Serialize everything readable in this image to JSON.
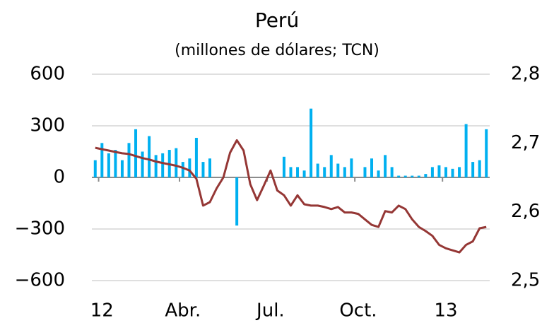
{
  "chart_data": {
    "type": "combo",
    "title": "Perú",
    "subtitle": "(millones de dólares; TCN)",
    "categories": [
      null,
      "12",
      null,
      null,
      null,
      null,
      null,
      null,
      null,
      null,
      null,
      null,
      null,
      "Abr.",
      null,
      null,
      null,
      null,
      null,
      null,
      null,
      null,
      null,
      null,
      null,
      null,
      "Jul.",
      null,
      null,
      null,
      null,
      null,
      null,
      null,
      null,
      null,
      null,
      null,
      null,
      "Oct.",
      null,
      null,
      null,
      null,
      null,
      null,
      null,
      null,
      null,
      null,
      null,
      null,
      "13",
      null,
      null,
      null,
      null,
      null,
      null
    ],
    "series": [
      {
        "type": "bar",
        "axis": "y",
        "color": "#00b0f0",
        "values": [
          100,
          200,
          140,
          160,
          100,
          200,
          280,
          150,
          240,
          130,
          140,
          160,
          170,
          90,
          110,
          230,
          90,
          110,
          0,
          0,
          0,
          -280,
          0,
          0,
          0,
          0,
          0,
          0,
          120,
          60,
          60,
          40,
          400,
          80,
          60,
          130,
          80,
          60,
          110,
          0,
          60,
          110,
          40,
          130,
          60,
          10,
          10,
          10,
          10,
          20,
          60,
          70,
          60,
          50,
          60,
          310,
          90,
          100,
          280
        ]
      },
      {
        "type": "line",
        "axis": "y2",
        "color": "#953735",
        "values": [
          2.693,
          2.691,
          2.689,
          2.687,
          2.685,
          2.684,
          2.681,
          2.678,
          2.676,
          2.673,
          2.671,
          2.669,
          2.667,
          2.664,
          2.66,
          2.648,
          2.609,
          2.614,
          2.634,
          2.65,
          2.686,
          2.704,
          2.689,
          2.64,
          2.617,
          2.638,
          2.66,
          2.631,
          2.624,
          2.609,
          2.624,
          2.611,
          2.609,
          2.609,
          2.607,
          2.604,
          2.607,
          2.599,
          2.599,
          2.597,
          2.589,
          2.581,
          2.578,
          2.601,
          2.599,
          2.609,
          2.604,
          2.589,
          2.578,
          2.572,
          2.565,
          2.552,
          2.547,
          2.544,
          2.541,
          2.552,
          2.557,
          2.576,
          2.578
        ]
      }
    ],
    "ylim": [
      -600,
      600
    ],
    "yticks": [
      600,
      300,
      0,
      {
        "value": -300,
        "label": "−300"
      },
      {
        "value": -600,
        "label": "−600"
      }
    ],
    "y2lim": [
      2.5,
      2.8
    ],
    "y2ticks": [
      {
        "value": 2.8,
        "label": "2,8"
      },
      {
        "value": 2.7,
        "label": "2,7"
      },
      {
        "value": 2.6,
        "label": "2,6"
      },
      {
        "value": 2.5,
        "label": "2,5"
      }
    ],
    "grid": true
  }
}
